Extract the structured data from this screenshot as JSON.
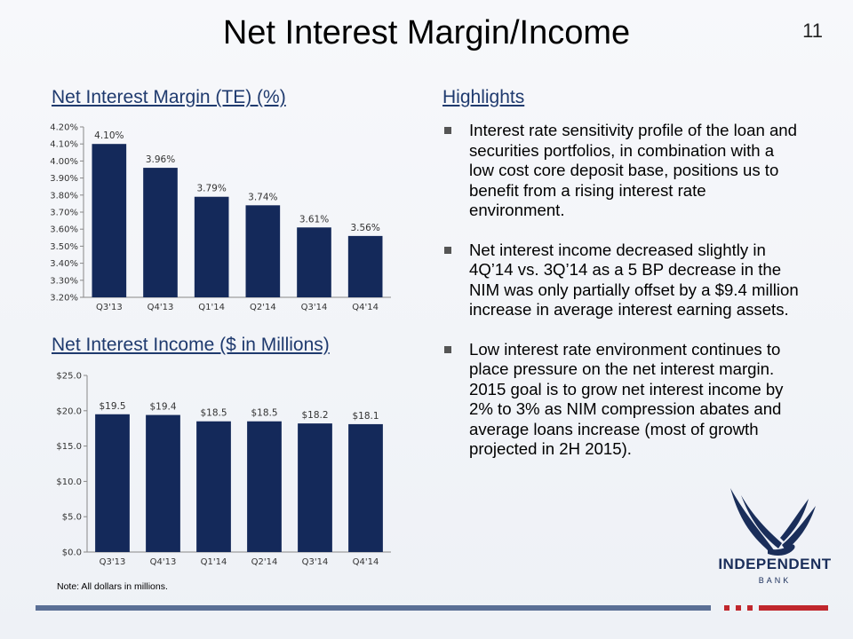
{
  "page": {
    "title": "Net Interest Margin/Income",
    "page_number": "11"
  },
  "left": {
    "nim_title": "Net Interest Margin (TE) (%)",
    "nii_title": "Net Interest Income ($ in Millions)",
    "note": "Note: All dollars in millions."
  },
  "highlights": {
    "title": "Highlights",
    "bullets": [
      "Interest rate sensitivity profile of the loan and securities portfolios, in combination with a low cost core deposit base, positions us to benefit from a rising interest rate environment.",
      "Net interest income decreased slightly in 4Q’14 vs. 3Q’14 as a 5 BP decrease in the NIM was only partially offset by a $9.4 million increase in average interest earning assets.",
      "Low interest rate environment continues to place pressure on the net interest margin.  2015 goal is to grow net interest income by 2% to 3% as NIM compression abates and average loans increase (most of growth projected in 2H 2015)."
    ]
  },
  "logo": {
    "name": "INDEPENDENT",
    "sub": "BANK",
    "icon": "eagle-icon"
  },
  "colors": {
    "bar": "#14295a",
    "accent_red": "#c0272d",
    "title_blue": "#1f3a6e"
  },
  "chart_data": [
    {
      "type": "bar",
      "title": "Net Interest Margin (TE) (%)",
      "categories": [
        "Q3'13",
        "Q4'13",
        "Q1'14",
        "Q2'14",
        "Q3'14",
        "Q4'14"
      ],
      "values": [
        4.1,
        3.96,
        3.79,
        3.74,
        3.61,
        3.56
      ],
      "data_labels": [
        "4.10%",
        "3.96%",
        "3.79%",
        "3.74%",
        "3.61%",
        "3.56%"
      ],
      "yticks": [
        "4.20%",
        "4.10%",
        "4.00%",
        "3.90%",
        "3.80%",
        "3.70%",
        "3.60%",
        "3.50%",
        "3.40%",
        "3.30%",
        "3.20%"
      ],
      "ylim": [
        3.2,
        4.2
      ],
      "grid": false
    },
    {
      "type": "bar",
      "title": "Net Interest Income ($ in Millions)",
      "categories": [
        "Q3'13",
        "Q4'13",
        "Q1'14",
        "Q2'14",
        "Q3'14",
        "Q4'14"
      ],
      "values": [
        19.5,
        19.4,
        18.5,
        18.5,
        18.2,
        18.1
      ],
      "data_labels": [
        "$19.5",
        "$19.4",
        "$18.5",
        "$18.5",
        "$18.2",
        "$18.1"
      ],
      "yticks": [
        "$25.0",
        "$20.0",
        "$15.0",
        "$10.0",
        "$5.0",
        "$0.0"
      ],
      "ylim": [
        0,
        25
      ],
      "grid": false
    }
  ]
}
